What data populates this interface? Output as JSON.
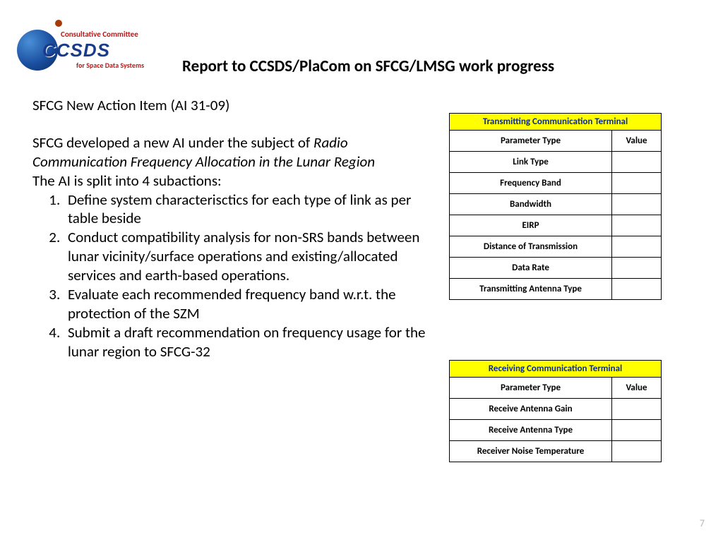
{
  "logo": {
    "line1": "Consultative Committee",
    "line2": "CCSDS",
    "line3": "for Space Data Systems"
  },
  "title": "Report to CCSDS/PlaCom on SFCG/LMSG work progress",
  "content": {
    "heading": "SFCG New Action Item (AI 31-09)",
    "intro_prefix": "SFCG developed a new AI under the subject of ",
    "intro_italic": "Radio Communication Frequency Allocation in the Lunar Region",
    "split_line": "The AI is split into 4 subactions:",
    "items": [
      "Define system characterisctics for each type of link as per table beside",
      "Conduct compatibility analysis for non-SRS bands between lunar vicinity/surface operations and existing/allocated services and earth-based operations.",
      "Evaluate each recommended frequency band w.r.t. the protection of the SZM",
      "Submit a draft recommendation on frequency usage for the lunar region to SFCG-32"
    ]
  },
  "table1": {
    "title": "Transmitting Communication Terminal",
    "col_param": "Parameter Type",
    "col_value": "Value",
    "header_bg": "#ffff00",
    "header_color": "#0a2a90",
    "rows": [
      "Link Type",
      "Frequency Band",
      "Bandwidth",
      "EIRP",
      "Distance of Transmission",
      "Data Rate",
      "Transmitting Antenna Type"
    ]
  },
  "table2": {
    "title": "Receiving Communication Terminal",
    "col_param": "Parameter Type",
    "col_value": "Value",
    "header_bg": "#ffff00",
    "header_color": "#0a2a90",
    "rows": [
      "Receive Antenna Gain",
      "Receive Antenna Type",
      "Receiver Noise Temperature"
    ]
  },
  "page_number": "7"
}
